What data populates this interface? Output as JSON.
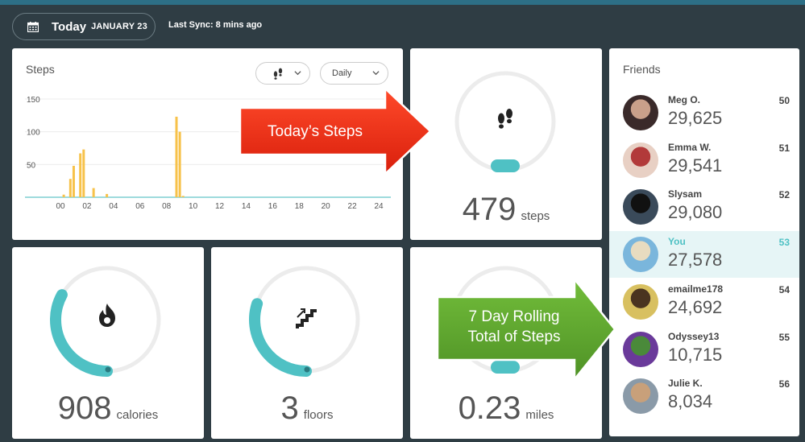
{
  "header": {
    "today_label": "Today",
    "date_label": "JANUARY 23",
    "sync_label": "Last Sync: 8 mins ago"
  },
  "steps_chart": {
    "title": "Steps",
    "period_label": "Daily"
  },
  "chart_data": {
    "type": "bar",
    "ylim": [
      0,
      150
    ],
    "yticks": [
      50,
      100,
      150
    ],
    "xticks": [
      "00",
      "02",
      "04",
      "06",
      "08",
      "10",
      "12",
      "14",
      "16",
      "18",
      "20",
      "22",
      "24"
    ],
    "x": [
      0.25,
      0.75,
      1.0,
      1.5,
      1.75,
      2.5,
      3.5,
      8.75,
      9.0,
      9.25
    ],
    "values": [
      4,
      28,
      48,
      67,
      73,
      14,
      5,
      123,
      100,
      2
    ],
    "bar_color": "#f7c24a"
  },
  "todays_steps": {
    "value": "479",
    "unit": "steps",
    "progress": 0.05
  },
  "calories": {
    "value": "908",
    "unit": "calories",
    "progress": 0.33
  },
  "floors": {
    "value": "3",
    "unit": "floors",
    "progress": 0.3
  },
  "miles": {
    "value": "0.23",
    "unit": "miles",
    "progress": 0.05
  },
  "friends": {
    "title": "Friends",
    "items": [
      {
        "name": "Meg O.",
        "steps": "29,625",
        "rank": "50"
      },
      {
        "name": "Emma W.",
        "steps": "29,541",
        "rank": "51"
      },
      {
        "name": "Slysam",
        "steps": "29,080",
        "rank": "52"
      },
      {
        "name": "You",
        "steps": "27,578",
        "rank": "53"
      },
      {
        "name": "emailme178",
        "steps": "24,692",
        "rank": "54"
      },
      {
        "name": "Odyssey13",
        "steps": "10,715",
        "rank": "55"
      },
      {
        "name": "Julie K.",
        "steps": "8,034",
        "rank": "56"
      }
    ]
  },
  "annotations": {
    "red": {
      "text": "Today’s Steps",
      "color": "#f0331a"
    },
    "green": {
      "line1": "7 Day Rolling",
      "line2": "Total of Steps",
      "color": "#5ea32e"
    }
  },
  "colors": {
    "accent": "#4fc1c4",
    "ring_track": "#ececec"
  }
}
